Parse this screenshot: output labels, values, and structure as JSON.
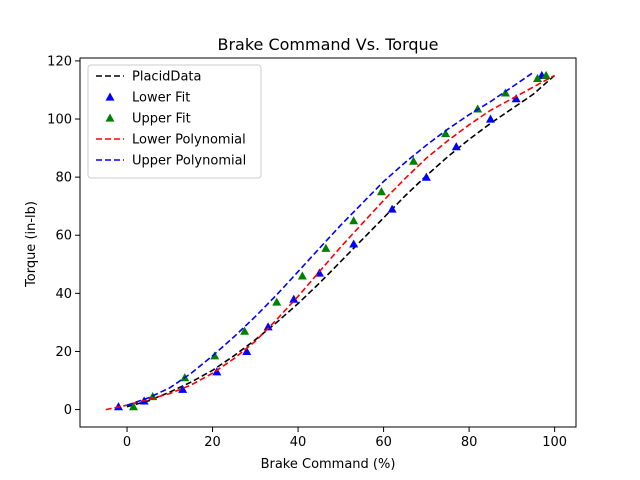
{
  "chart_data": {
    "type": "line",
    "title": "Brake Command Vs. Torque",
    "xlabel": "Brake Command (%)",
    "ylabel": "Torque (in-lb)",
    "xlim": [
      -11,
      105
    ],
    "ylim": [
      -6,
      121
    ],
    "xticks": [
      0,
      20,
      40,
      60,
      80,
      100
    ],
    "yticks": [
      0,
      20,
      40,
      60,
      80,
      100,
      120
    ],
    "grid": false,
    "legend_position": "upper-left",
    "series": [
      {
        "name": "PlacidData",
        "kind": "line",
        "color": "#000000",
        "dash": true,
        "x": [
          0,
          5,
          10,
          15,
          20,
          25,
          30,
          35,
          40,
          45,
          50,
          55,
          60,
          65,
          70,
          75,
          80,
          85,
          90,
          95,
          100
        ],
        "y": [
          1,
          3,
          6,
          9.5,
          13.5,
          18.5,
          24,
          30,
          36.5,
          43.5,
          51,
          58.5,
          66,
          73.5,
          80.5,
          87,
          93,
          98.5,
          103.5,
          108.5,
          115
        ]
      },
      {
        "name": "Lower Fit",
        "kind": "marker",
        "color": "#0000ff",
        "x": [
          -2,
          4,
          13,
          21,
          28,
          33,
          39,
          45,
          53,
          62,
          70,
          77,
          85,
          91,
          97
        ],
        "y": [
          1,
          3,
          7,
          13,
          20,
          28.5,
          38,
          47,
          57,
          69,
          80,
          90.5,
          100,
          107,
          115
        ]
      },
      {
        "name": "Upper Fit",
        "kind": "marker",
        "color": "#008000",
        "x": [
          1.5,
          6,
          13.5,
          20.5,
          27.5,
          35,
          41,
          46.5,
          53,
          59.5,
          67,
          74.5,
          82,
          88.5,
          96,
          98
        ],
        "y": [
          1,
          4.5,
          11,
          18.5,
          27,
          37,
          46,
          55.5,
          65,
          75,
          85.5,
          95,
          103.5,
          109,
          114,
          115
        ]
      },
      {
        "name": "Lower Polynomial",
        "kind": "line",
        "color": "#ff0000",
        "dash": true,
        "x": [
          -5,
          0,
          5,
          10,
          15,
          20,
          25,
          30,
          35,
          40,
          45,
          50,
          55,
          60,
          65,
          70,
          75,
          80,
          85,
          90,
          95,
          100
        ],
        "y": [
          0,
          1.5,
          3.5,
          5.5,
          8.5,
          12.5,
          17.5,
          23.5,
          31,
          39,
          47.5,
          56,
          64,
          72,
          79.5,
          86.5,
          92.5,
          98,
          103,
          107,
          111,
          115
        ]
      },
      {
        "name": "Upper Polynomial",
        "kind": "line",
        "color": "#0000ff",
        "dash": true,
        "x": [
          0,
          5,
          10,
          15,
          20,
          25,
          30,
          35,
          40,
          45,
          50,
          55,
          60,
          65,
          70,
          75,
          80,
          85,
          90,
          95
        ],
        "y": [
          1.5,
          4,
          7.5,
          12.5,
          18.5,
          25,
          32,
          39.5,
          47.5,
          55.5,
          63.5,
          71,
          78.5,
          85,
          91,
          96.5,
          101.5,
          106,
          111,
          116
        ]
      }
    ]
  }
}
